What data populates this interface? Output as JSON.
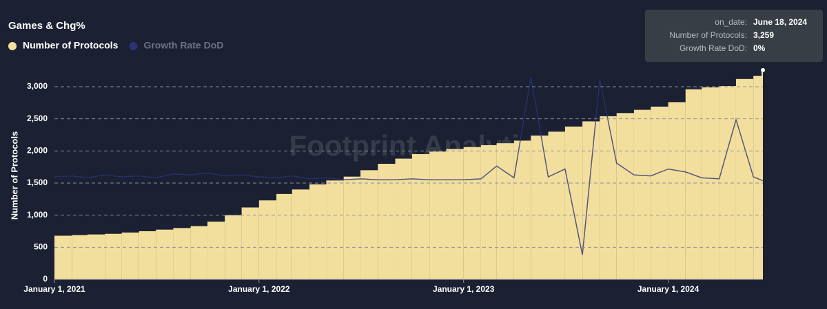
{
  "chart_data": {
    "type": "bar-line",
    "title": "Games & Chg%",
    "y_label": "Number of Protocols",
    "watermark": "Footprint Analytics",
    "x": [
      "2021-01-01",
      "2021-02-01",
      "2021-03-01",
      "2021-04-01",
      "2021-05-01",
      "2021-06-01",
      "2021-07-01",
      "2021-08-01",
      "2021-09-01",
      "2021-10-01",
      "2021-11-01",
      "2021-12-01",
      "2022-01-01",
      "2022-02-01",
      "2022-03-01",
      "2022-04-01",
      "2022-05-01",
      "2022-06-01",
      "2022-07-01",
      "2022-08-01",
      "2022-09-01",
      "2022-10-01",
      "2022-11-01",
      "2022-12-01",
      "2023-01-01",
      "2023-02-01",
      "2023-03-01",
      "2023-04-01",
      "2023-05-01",
      "2023-06-01",
      "2023-07-01",
      "2023-08-01",
      "2023-09-01",
      "2023-10-01",
      "2023-11-01",
      "2023-12-01",
      "2024-01-01",
      "2024-02-01",
      "2024-03-01",
      "2024-04-01",
      "2024-05-01",
      "2024-06-01",
      "2024-06-18"
    ],
    "xlim": [
      "2021-01-01",
      "2024-06-18"
    ],
    "xticks": [
      {
        "value": "2021-01-01",
        "label": "January 1, 2021"
      },
      {
        "value": "2022-01-01",
        "label": "January 1, 2022"
      },
      {
        "value": "2023-01-01",
        "label": "January 1, 2023"
      },
      {
        "value": "2024-01-01",
        "label": "January 1, 2024"
      }
    ],
    "ylim": [
      0,
      3300
    ],
    "yticks": [
      0,
      500,
      {
        "value": 1000,
        "label": "1,000"
      },
      {
        "value": 1500,
        "label": "1,500"
      },
      {
        "value": 2000,
        "label": "2,000"
      },
      {
        "value": 2500,
        "label": "2,500"
      },
      {
        "value": 3000,
        "label": "3,000"
      }
    ],
    "y2lim": [
      -10,
      11.5
    ],
    "grid": true,
    "series": [
      {
        "name": "Number of Protocols",
        "color": "#f3df9d",
        "values": [
          680,
          690,
          700,
          710,
          730,
          750,
          775,
          800,
          830,
          900,
          1000,
          1120,
          1230,
          1330,
          1400,
          1480,
          1540,
          1600,
          1700,
          1800,
          1880,
          1950,
          1990,
          2030,
          2060,
          2090,
          2120,
          2160,
          2240,
          2300,
          2380,
          2460,
          2540,
          2590,
          2640,
          2690,
          2760,
          2960,
          2990,
          3010,
          3120,
          3170,
          3259
        ]
      },
      {
        "name": "Growth Rate DoD",
        "color": "#2c3275",
        "axis": "y2",
        "values": [
          0.4,
          0.5,
          0.3,
          0.6,
          0.4,
          0.5,
          0.3,
          0.7,
          0.6,
          0.8,
          0.5,
          0.6,
          0.4,
          0.3,
          0.5,
          0.2,
          0.3,
          0.1,
          0.2,
          0.1,
          0.1,
          0.2,
          0.1,
          0.1,
          0.1,
          0.2,
          1.5,
          0.3,
          10.5,
          0.4,
          1.2,
          -7.5,
          10.3,
          1.8,
          0.6,
          0.5,
          1.2,
          0.9,
          0.3,
          0.2,
          6.2,
          0.4,
          0
        ]
      }
    ],
    "tooltip": [
      {
        "label": "on_date:",
        "value": "June 18, 2024"
      },
      {
        "label": "Number of Protocols:",
        "value": "3,259"
      },
      {
        "label": "Growth Rate DoD:",
        "value": "0%"
      }
    ]
  }
}
